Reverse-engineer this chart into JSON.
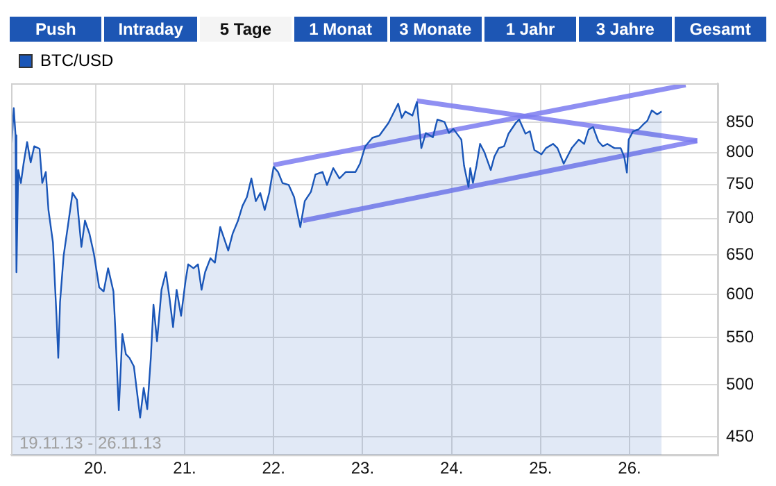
{
  "chart_data": {
    "type": "area",
    "annotations": [
      "Push",
      "Intraday",
      "5 Tage",
      "1 Monat",
      "3 Monate",
      "1 Jahr",
      "3 Jahre",
      "Gesamt",
      "19.11.13 - 26.11.13"
    ],
    "log": true,
    "grid": true,
    "legend": "top left",
    "marker": "none",
    "xlim": [
      19.05,
      26.99
    ],
    "ylim": [
      434,
      920
    ],
    "xticks": [
      {
        "value": 20,
        "label": "20."
      },
      {
        "value": 21,
        "label": "21."
      },
      {
        "value": 22,
        "label": "22."
      },
      {
        "value": 23,
        "label": "23."
      },
      {
        "value": 24,
        "label": "24."
      },
      {
        "value": 25,
        "label": "25."
      },
      {
        "value": 26,
        "label": "26."
      }
    ],
    "yticks": [
      450,
      500,
      550,
      600,
      650,
      700,
      750,
      800,
      850
    ],
    "series": [
      {
        "name": "BTC/USD",
        "color": "#1a56b8",
        "x": [
          19.05,
          19.08,
          19.1,
          19.11,
          19.13,
          19.16,
          19.19,
          19.23,
          19.27,
          19.31,
          19.37,
          19.4,
          19.44,
          19.47,
          19.52,
          19.56,
          19.58,
          19.6,
          19.64,
          19.69,
          19.74,
          19.79,
          19.84,
          19.88,
          19.93,
          19.98,
          20.04,
          20.09,
          20.14,
          20.2,
          20.22,
          20.26,
          20.3,
          20.34,
          20.38,
          20.43,
          20.47,
          20.5,
          20.54,
          20.58,
          20.62,
          20.65,
          20.69,
          20.74,
          20.79,
          20.83,
          20.87,
          20.91,
          20.96,
          21.01,
          21.04,
          21.1,
          21.15,
          21.19,
          21.23,
          21.29,
          21.34,
          21.4,
          21.45,
          21.49,
          21.54,
          21.6,
          21.65,
          21.7,
          21.75,
          21.8,
          21.85,
          21.9,
          21.95,
          22,
          22.05,
          22.1,
          22.17,
          22.23,
          22.3,
          22.35,
          22.42,
          22.47,
          22.55,
          22.6,
          22.67,
          22.74,
          22.81,
          22.92,
          22.97,
          23.03,
          23.11,
          23.19,
          23.29,
          23.4,
          23.44,
          23.48,
          23.56,
          23.61,
          23.66,
          23.71,
          23.79,
          23.84,
          23.92,
          23.97,
          24.02,
          24.11,
          24.14,
          24.19,
          24.21,
          24.24,
          24.28,
          24.32,
          24.37,
          24.44,
          24.48,
          24.53,
          24.59,
          24.64,
          24.72,
          24.76,
          24.83,
          24.88,
          24.93,
          25.01,
          25.06,
          25.14,
          25.19,
          25.26,
          25.3,
          25.35,
          25.43,
          25.49,
          25.54,
          25.59,
          25.65,
          25.7,
          25.75,
          25.83,
          25.9,
          25.94,
          25.97,
          25.99,
          26.04,
          26.1,
          26.15,
          26.2,
          26.25,
          26.31,
          26.36
        ],
        "values": [
          799,
          875,
          828,
          628,
          772,
          752,
          782,
          817,
          784,
          810,
          806,
          752,
          769,
          712,
          667,
          575,
          528,
          591,
          649,
          691,
          737,
          727,
          661,
          697,
          679,
          652,
          609,
          604,
          633,
          604,
          562,
          475,
          554,
          532,
          528,
          519,
          489,
          468,
          497,
          476,
          528,
          588,
          546,
          606,
          628,
          596,
          562,
          606,
          575,
          617,
          638,
          633,
          638,
          606,
          628,
          646,
          640,
          688,
          670,
          656,
          679,
          697,
          718,
          731,
          759,
          725,
          737,
          712,
          737,
          777,
          769,
          752,
          749,
          731,
          688,
          725,
          739,
          765,
          769,
          749,
          775,
          759,
          769,
          769,
          782,
          810,
          824,
          828,
          849,
          883,
          858,
          869,
          862,
          886,
          807,
          832,
          825,
          855,
          851,
          832,
          839,
          821,
          779,
          746,
          775,
          752,
          779,
          814,
          800,
          772,
          793,
          807,
          810,
          831,
          849,
          855,
          831,
          835,
          804,
          797,
          807,
          814,
          807,
          782,
          793,
          807,
          821,
          814,
          838,
          842,
          818,
          810,
          814,
          807,
          807,
          793,
          768,
          821,
          835,
          838,
          846,
          853,
          871,
          864,
          869
        ]
      },
      {
        "type": "line",
        "color": "#7b7bf0",
        "x": [
          22,
          26.63
        ],
        "values": [
          780,
          917
        ]
      },
      {
        "type": "line",
        "color": "#7b7bf0",
        "x": [
          22.33,
          26.76
        ],
        "values": [
          697,
          819
        ]
      },
      {
        "type": "line",
        "color": "#7b7bf0",
        "x": [
          23.61,
          26.76
        ],
        "values": [
          888,
          819
        ]
      }
    ]
  }
}
